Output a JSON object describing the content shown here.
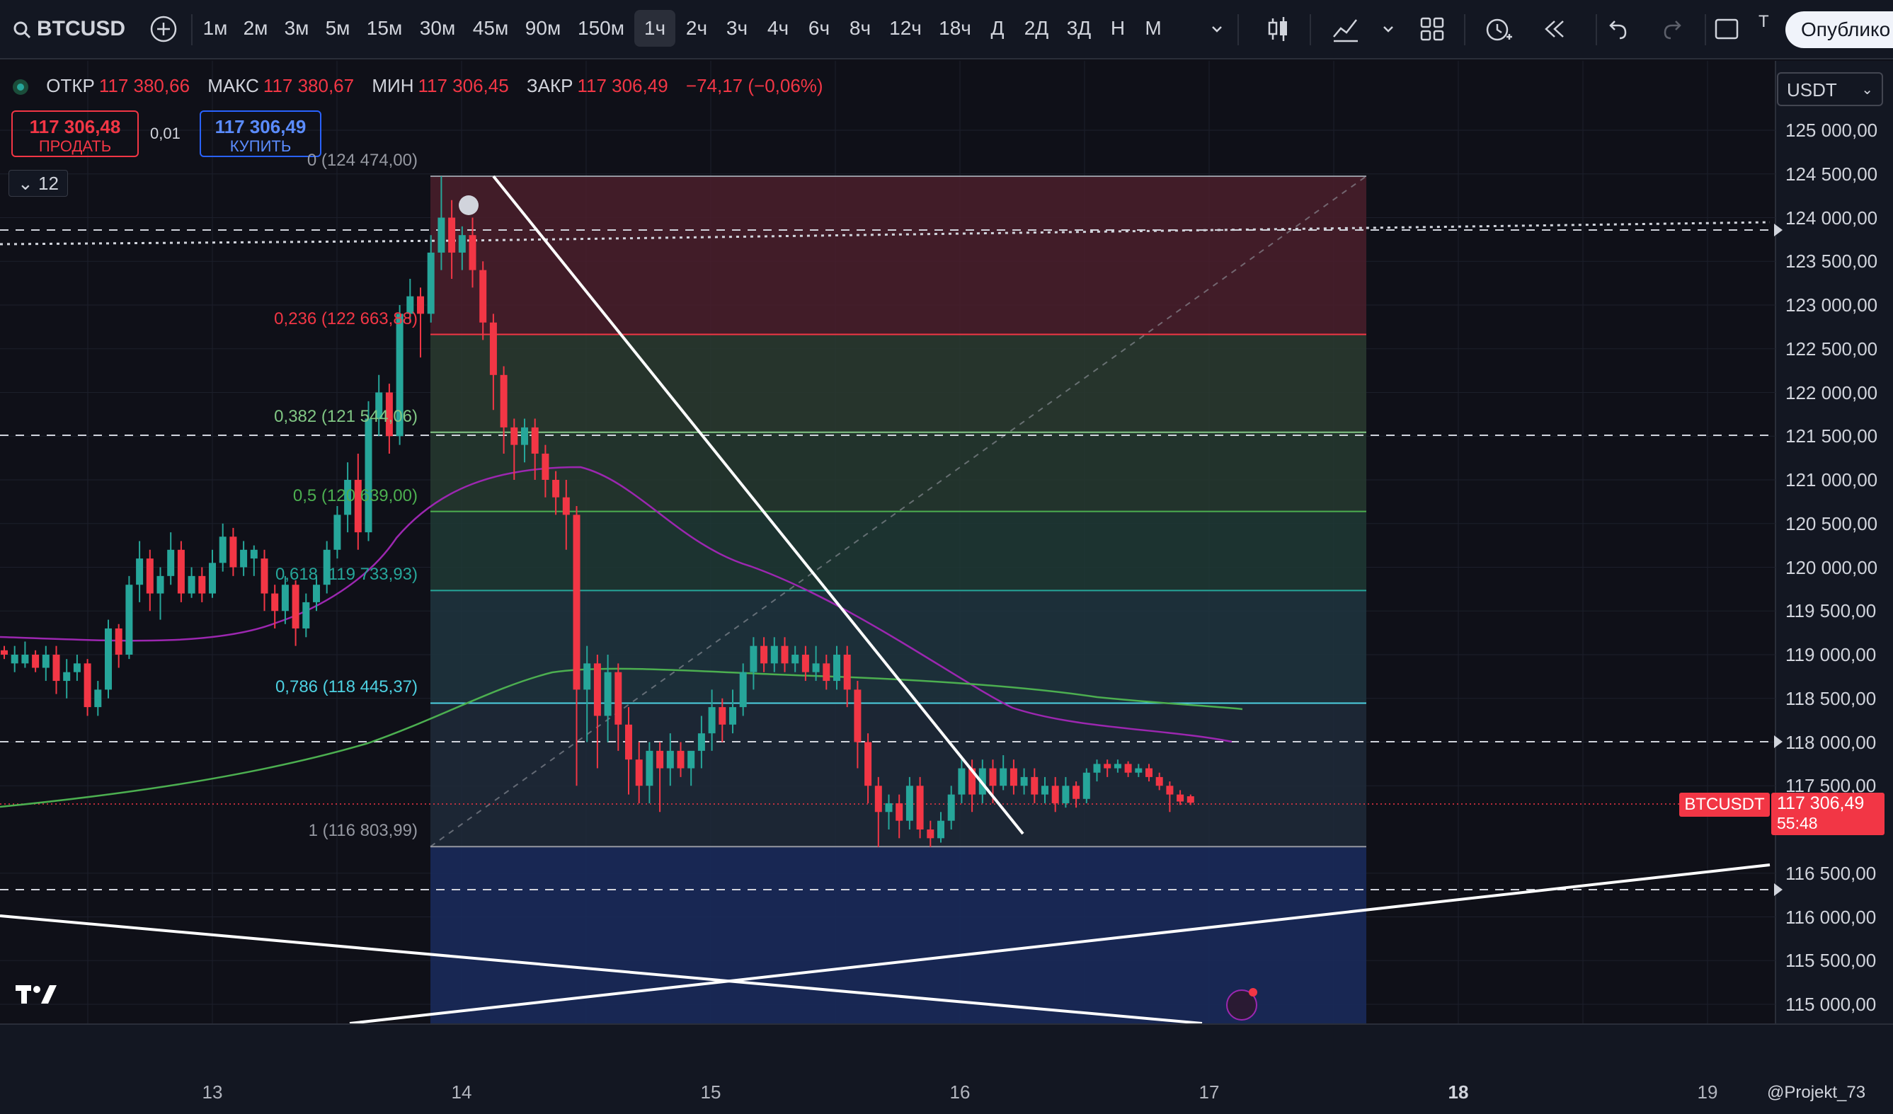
{
  "toolbar": {
    "symbol": "BTCUSD",
    "timeframes": [
      "1м",
      "2м",
      "3м",
      "5м",
      "15м",
      "30м",
      "45м",
      "90м",
      "150м",
      "1ч",
      "2ч",
      "3ч",
      "4ч",
      "6ч",
      "8ч",
      "12ч",
      "18ч",
      "Д",
      "2Д",
      "3Д",
      "Н",
      "М"
    ],
    "active_timeframe": "1ч",
    "partial_label": "Т",
    "publish_label": "Опублико"
  },
  "legend": {
    "open_label": "ОТКР",
    "open": "117 380,66",
    "high_label": "МАКС",
    "high": "117 380,67",
    "low_label": "МИН",
    "low": "117 306,45",
    "close_label": "ЗАКР",
    "close": "117 306,49",
    "change": "−74,17 (−0,06%)"
  },
  "trade": {
    "sell_price": "117 306,48",
    "sell_label": "ПРОДАТЬ",
    "spread": "0,01",
    "buy_price": "117 306,49",
    "buy_label": "КУПИТЬ",
    "collapse_count": "12"
  },
  "currency": "USDT",
  "chart_data": {
    "type": "candlestick",
    "price_axis": [
      "125 000,00",
      "124 500,00",
      "124 000,00",
      "123 500,00",
      "123 000,00",
      "122 500,00",
      "122 000,00",
      "121 500,00",
      "121 000,00",
      "120 500,00",
      "120 000,00",
      "119 500,00",
      "119 000,00",
      "118 500,00",
      "118 000,00",
      "117 500,00",
      "116 500,00",
      "116 000,00",
      "115 500,00",
      "115 000,00"
    ],
    "x_axis": [
      {
        "label": "13",
        "bold": false
      },
      {
        "label": "14",
        "bold": false
      },
      {
        "label": "15",
        "bold": false
      },
      {
        "label": "16",
        "bold": false
      },
      {
        "label": "17",
        "bold": false
      },
      {
        "label": "18",
        "bold": true
      },
      {
        "label": "19",
        "bold": false
      }
    ],
    "fib_levels": [
      {
        "ratio": "0",
        "price": 124474.0,
        "label": "0 (124 474,00)",
        "color": "#9598a1"
      },
      {
        "ratio": "0,236",
        "price": 122663.88,
        "label": "0,236 (122 663,88)",
        "color": "#f23645"
      },
      {
        "ratio": "0,382",
        "price": 121544.06,
        "label": "0,382 (121 544,06)",
        "color": "#81c784"
      },
      {
        "ratio": "0,5",
        "price": 120639.0,
        "label": "0,5 (120 639,00)",
        "color": "#4caf50"
      },
      {
        "ratio": "0,618",
        "price": 119733.93,
        "label": "0,618 (119 733,93)",
        "color": "#26a69a"
      },
      {
        "ratio": "0,786",
        "price": 118445.37,
        "label": "0,786 (118 445,37)",
        "color": "#4dd0e1"
      },
      {
        "ratio": "1",
        "price": 116803.99,
        "label": "1 (116 803,99)",
        "color": "#9598a1"
      }
    ],
    "symbol_tag": "BTCUSDT",
    "last_price": "117 306,49",
    "countdown": "55:48",
    "last_price_value": 117306.49,
    "colors": {
      "up": "#26a69a",
      "down": "#f23645",
      "ma_purple": "#9c27b0",
      "ma_green": "#4caf50"
    }
  },
  "watermark": "@Projekt_73"
}
